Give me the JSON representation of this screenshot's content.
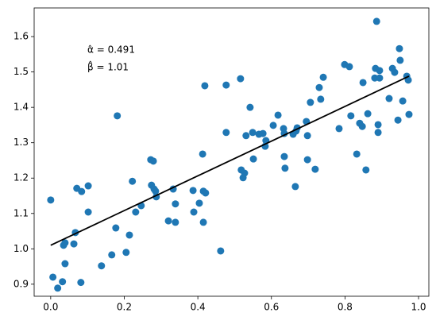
{
  "chart_data": {
    "type": "scatter",
    "annotations": [
      "α̂ = 0.491",
      "β̂ = 1.01"
    ],
    "xlim": [
      -0.045,
      1.028
    ],
    "ylim": [
      0.866,
      1.681
    ],
    "xticks": [
      {
        "value": 0,
        "label": "0.0"
      },
      0.2,
      0.4,
      0.6,
      0.8,
      {
        "value": 1,
        "label": "1.0"
      }
    ],
    "yticks": [
      0.9,
      {
        "value": 1,
        "label": "1.0"
      },
      1.1,
      1.2,
      1.3,
      1.4,
      1.5,
      1.6
    ],
    "series": [
      {
        "type": "scatter",
        "color": "#1f77b4",
        "x": [
          0.0,
          0.006,
          0.019,
          0.032,
          0.035,
          0.039,
          0.039,
          0.063,
          0.067,
          0.071,
          0.084,
          0.082,
          0.102,
          0.102,
          0.138,
          0.166,
          0.177,
          0.181,
          0.205,
          0.214,
          0.222,
          0.231,
          0.246,
          0.272,
          0.279,
          0.274,
          0.281,
          0.287,
          0.285,
          0.32,
          0.333,
          0.339,
          0.339,
          0.387,
          0.389,
          0.404,
          0.413,
          0.415,
          0.419,
          0.421,
          0.415,
          0.462,
          0.477,
          0.477,
          0.516,
          0.518,
          0.523,
          0.527,
          0.531,
          0.542,
          0.549,
          0.551,
          0.566,
          0.577,
          0.583,
          0.585,
          0.605,
          0.618,
          0.633,
          0.635,
          0.635,
          0.637,
          0.659,
          0.665,
          0.667,
          0.67,
          0.695,
          0.698,
          0.698,
          0.706,
          0.719,
          0.73,
          0.734,
          0.741,
          0.784,
          0.799,
          0.812,
          0.816,
          0.832,
          0.84,
          0.847,
          0.849,
          0.857,
          0.862,
          0.886,
          0.883,
          0.881,
          0.89,
          0.89,
          0.894,
          0.894,
          0.92,
          0.929,
          0.935,
          0.944,
          0.948,
          0.95,
          0.957,
          0.968,
          0.972,
          0.974
        ],
        "values": [
          1.138,
          0.92,
          0.889,
          0.907,
          1.01,
          1.017,
          0.958,
          1.014,
          1.046,
          1.171,
          1.162,
          0.905,
          1.178,
          1.104,
          0.952,
          0.983,
          1.059,
          1.376,
          0.99,
          1.039,
          1.191,
          1.104,
          1.122,
          1.252,
          1.248,
          1.18,
          1.169,
          1.147,
          1.163,
          1.079,
          1.169,
          1.127,
          1.075,
          1.165,
          1.104,
          1.129,
          1.268,
          1.163,
          1.461,
          1.158,
          1.075,
          0.994,
          1.329,
          1.463,
          1.481,
          1.223,
          1.201,
          1.214,
          1.32,
          1.4,
          1.329,
          1.254,
          1.324,
          1.326,
          1.29,
          1.306,
          1.349,
          1.378,
          1.34,
          1.261,
          1.326,
          1.228,
          1.324,
          1.176,
          1.333,
          1.342,
          1.36,
          1.32,
          1.252,
          1.414,
          1.225,
          1.456,
          1.423,
          1.485,
          1.34,
          1.521,
          1.515,
          1.376,
          1.268,
          1.355,
          1.346,
          1.47,
          1.223,
          1.382,
          1.643,
          1.51,
          1.483,
          1.351,
          1.329,
          1.483,
          1.504,
          1.425,
          1.51,
          1.499,
          1.364,
          1.566,
          1.533,
          1.418,
          1.488,
          1.477,
          1.38
        ]
      },
      {
        "type": "line",
        "color": "#000000",
        "x": [
          0.0,
          0.974
        ],
        "values": [
          1.01,
          1.488
        ]
      }
    ]
  }
}
